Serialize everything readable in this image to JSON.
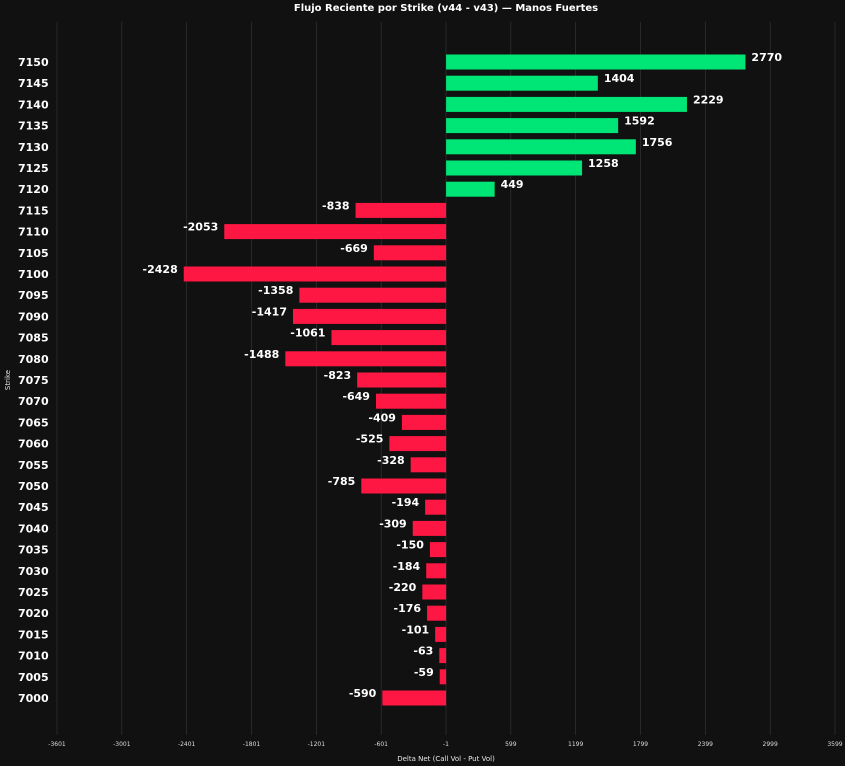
{
  "chart_data": {
    "type": "bar",
    "orientation": "horizontal",
    "title": "Flujo Reciente por Strike (v44 - v43) — Manos Fuertes",
    "xlabel": "Delta Net (Call Vol - Put Vol)",
    "ylabel": "Strike",
    "xlim": [
      -3601,
      3599
    ],
    "xticks": [
      "-3601",
      "-3001",
      "-2401",
      "-1801",
      "-1201",
      "-601",
      "-1",
      "599",
      "1199",
      "1799",
      "2399",
      "2999",
      "3599"
    ],
    "grid": true,
    "positive_color": "#00e676",
    "negative_color": "#ff1744",
    "background_color": "#111111",
    "categories": [
      "7150",
      "7145",
      "7140",
      "7135",
      "7130",
      "7125",
      "7120",
      "7115",
      "7110",
      "7105",
      "7100",
      "7095",
      "7090",
      "7085",
      "7080",
      "7075",
      "7070",
      "7065",
      "7060",
      "7055",
      "7050",
      "7045",
      "7040",
      "7035",
      "7030",
      "7025",
      "7020",
      "7015",
      "7010",
      "7005",
      "7000"
    ],
    "values": [
      2770,
      1404,
      2229,
      1592,
      1756,
      1258,
      449,
      -838,
      -2053,
      -669,
      -2428,
      -1358,
      -1417,
      -1061,
      -1488,
      -823,
      -649,
      -409,
      -525,
      -328,
      -785,
      -194,
      -309,
      -150,
      -184,
      -220,
      -176,
      -101,
      -63,
      -59,
      -590
    ]
  }
}
